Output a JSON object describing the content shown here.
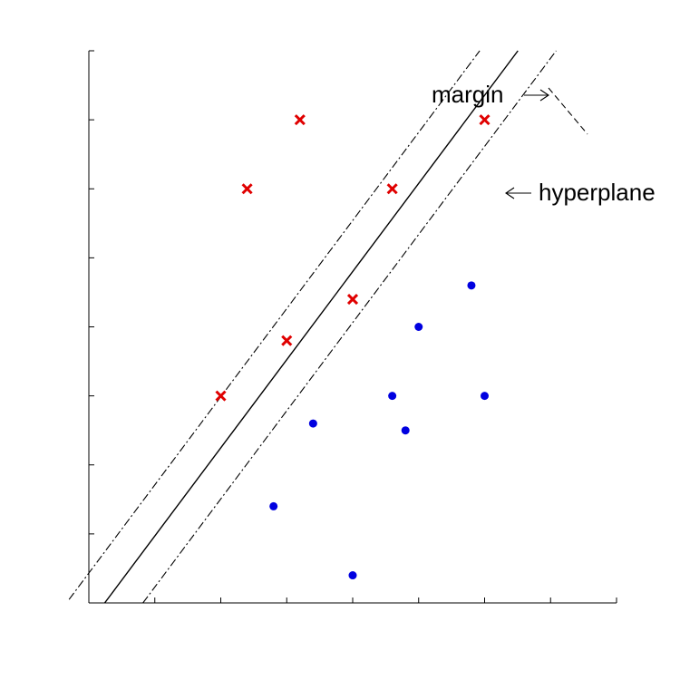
{
  "chart_data": {
    "type": "scatter",
    "title": "",
    "xlabel": "",
    "ylabel": "",
    "xlim": [
      0,
      8
    ],
    "ylim": [
      0,
      8
    ],
    "grid": false,
    "ticks": {
      "x": [
        0,
        1,
        2,
        3,
        4,
        5,
        6,
        7,
        8
      ],
      "y": [
        0,
        1,
        2,
        3,
        4,
        5,
        6,
        7,
        8
      ]
    },
    "series": [
      {
        "marker": "x",
        "color": "#e00000",
        "points": [
          [
            3.2,
            7.0
          ],
          [
            6.0,
            7.0
          ],
          [
            2.4,
            6.0
          ],
          [
            4.6,
            6.0
          ],
          [
            4.0,
            4.4
          ],
          [
            3.0,
            3.8
          ],
          [
            2.0,
            3.0
          ]
        ]
      },
      {
        "marker": "dot",
        "color": "#0000e0",
        "points": [
          [
            5.8,
            4.6
          ],
          [
            5.0,
            4.0
          ],
          [
            4.6,
            3.0
          ],
          [
            6.0,
            3.0
          ],
          [
            3.4,
            2.6
          ],
          [
            4.8,
            2.5
          ],
          [
            2.8,
            1.4
          ],
          [
            4.0,
            0.4
          ]
        ]
      }
    ],
    "lines": [
      {
        "kind": "hyperplane",
        "style": "solid",
        "slope": 1.277,
        "intercept": -0.307
      },
      {
        "kind": "margin",
        "style": "dash-dot",
        "slope": 1.277,
        "intercept": 0.433
      },
      {
        "kind": "margin",
        "style": "dash-dot",
        "slope": 1.277,
        "intercept": -1.047
      }
    ],
    "annotations": [
      {
        "text": "margin",
        "arrow": "right"
      },
      {
        "text": "hyperplane",
        "arrow": "left"
      }
    ]
  }
}
